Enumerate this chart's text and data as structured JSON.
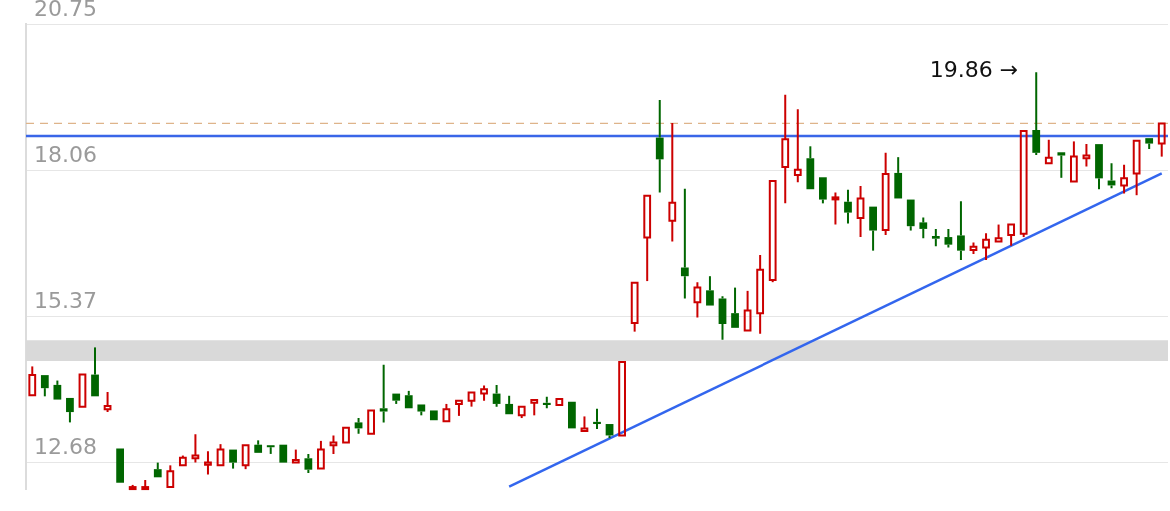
{
  "chart_data": {
    "type": "candlestick",
    "categories": [
      null,
      null,
      null,
      null,
      null,
      null,
      null,
      null,
      null,
      null,
      null,
      null,
      null,
      null,
      null,
      null,
      null,
      null,
      null,
      null,
      null,
      null,
      null,
      null,
      null,
      null,
      null,
      null,
      null,
      null,
      null,
      null,
      null,
      null,
      null,
      null,
      null,
      null,
      null,
      null,
      null,
      null,
      null,
      null,
      null,
      null,
      null,
      null,
      null,
      null,
      null,
      null,
      null,
      null,
      null,
      null,
      null,
      null,
      null,
      null,
      null,
      null,
      null,
      null,
      null,
      null,
      null,
      null,
      null,
      null,
      null,
      null,
      null,
      null,
      null,
      null,
      null,
      null,
      null,
      null,
      null,
      null,
      null,
      null,
      null,
      null,
      null,
      null,
      null,
      null,
      null
    ],
    "ohlc": [
      [
        13.92,
        14.45,
        13.92,
        14.29
      ],
      [
        14.29,
        14.29,
        13.9,
        14.05
      ],
      [
        14.11,
        14.19,
        13.84,
        13.84
      ],
      [
        13.87,
        13.87,
        13.42,
        13.61
      ],
      [
        13.71,
        14.32,
        13.69,
        14.3
      ],
      [
        14.3,
        14.8,
        13.9,
        13.9
      ],
      [
        13.66,
        13.98,
        13.61,
        13.72
      ],
      [
        12.94,
        12.94,
        12.31,
        12.31
      ],
      [
        12.2,
        12.27,
        12.2,
        12.23
      ],
      [
        12.2,
        12.36,
        12.2,
        12.23
      ],
      [
        12.56,
        12.68,
        12.39,
        12.41
      ],
      [
        12.23,
        12.63,
        12.2,
        12.52
      ],
      [
        12.63,
        12.81,
        12.63,
        12.77
      ],
      [
        12.76,
        13.2,
        12.68,
        12.81
      ],
      [
        12.64,
        12.89,
        12.46,
        12.68
      ],
      [
        12.63,
        13.02,
        12.63,
        12.92
      ],
      [
        12.92,
        12.94,
        12.57,
        12.68
      ],
      [
        12.63,
        13.01,
        12.56,
        13.0
      ],
      [
        13.01,
        13.09,
        12.86,
        12.86
      ],
      [
        13.0,
        13.02,
        12.84,
        12.97
      ],
      [
        13.01,
        13.01,
        12.68,
        12.68
      ],
      [
        12.68,
        12.92,
        12.65,
        12.73
      ],
      [
        12.76,
        12.84,
        12.49,
        12.55
      ],
      [
        12.57,
        13.08,
        12.57,
        12.92
      ],
      [
        13.0,
        13.18,
        12.84,
        13.05
      ],
      [
        13.05,
        13.34,
        13.04,
        13.32
      ],
      [
        13.42,
        13.5,
        13.21,
        13.31
      ],
      [
        13.21,
        13.64,
        13.21,
        13.64
      ],
      [
        13.68,
        14.48,
        13.42,
        13.62
      ],
      [
        13.95,
        13.98,
        13.76,
        13.82
      ],
      [
        13.92,
        14.0,
        13.66,
        13.68
      ],
      [
        13.75,
        13.75,
        13.55,
        13.62
      ],
      [
        13.64,
        13.66,
        13.45,
        13.46
      ],
      [
        13.44,
        13.76,
        13.44,
        13.66
      ],
      [
        13.76,
        13.82,
        13.54,
        13.82
      ],
      [
        13.82,
        13.98,
        13.71,
        13.97
      ],
      [
        13.95,
        14.1,
        13.82,
        14.03
      ],
      [
        13.95,
        14.11,
        13.71,
        13.76
      ],
      [
        13.76,
        13.91,
        13.55,
        13.57
      ],
      [
        13.55,
        13.71,
        13.5,
        13.71
      ],
      [
        13.78,
        13.85,
        13.55,
        13.83
      ],
      [
        13.78,
        13.89,
        13.68,
        13.74
      ],
      [
        13.74,
        13.85,
        13.71,
        13.85
      ],
      [
        13.8,
        13.8,
        13.3,
        13.31
      ],
      [
        13.26,
        13.53,
        13.23,
        13.31
      ],
      [
        13.43,
        13.67,
        13.3,
        13.39
      ],
      [
        13.39,
        13.41,
        13.13,
        13.18
      ],
      [
        13.18,
        14.53,
        13.17,
        14.53
      ],
      [
        15.25,
        15.99,
        15.09,
        15.99
      ],
      [
        16.82,
        17.6,
        16.02,
        17.59
      ],
      [
        18.66,
        19.35,
        17.65,
        18.26
      ],
      [
        17.13,
        18.93,
        16.75,
        17.46
      ],
      [
        16.27,
        17.72,
        15.7,
        16.11
      ],
      [
        15.63,
        16.0,
        15.35,
        15.9
      ],
      [
        15.85,
        16.11,
        15.54,
        15.57
      ],
      [
        15.7,
        15.74,
        14.94,
        15.23
      ],
      [
        15.43,
        15.9,
        15.16,
        15.16
      ],
      [
        15.11,
        15.84,
        15.11,
        15.48
      ],
      [
        15.43,
        16.5,
        15.05,
        16.23
      ],
      [
        16.04,
        17.87,
        16.0,
        17.86
      ],
      [
        18.12,
        19.45,
        17.45,
        18.63
      ],
      [
        17.97,
        19.18,
        17.84,
        18.07
      ],
      [
        18.28,
        18.5,
        17.71,
        17.71
      ],
      [
        17.93,
        17.94,
        17.45,
        17.52
      ],
      [
        17.54,
        17.65,
        17.06,
        17.56
      ],
      [
        17.48,
        17.7,
        17.08,
        17.28
      ],
      [
        17.18,
        17.77,
        16.83,
        17.54
      ],
      [
        17.39,
        17.39,
        16.58,
        16.95
      ],
      [
        16.96,
        18.38,
        16.87,
        17.99
      ],
      [
        18.01,
        18.3,
        17.54,
        17.54
      ],
      [
        17.52,
        17.52,
        16.95,
        17.03
      ],
      [
        17.1,
        17.19,
        16.81,
        16.98
      ],
      [
        16.85,
        16.98,
        16.66,
        16.8
      ],
      [
        16.83,
        16.98,
        16.64,
        16.69
      ],
      [
        16.86,
        17.49,
        16.41,
        16.58
      ],
      [
        16.59,
        16.73,
        16.52,
        16.65
      ],
      [
        16.64,
        16.9,
        16.41,
        16.78
      ],
      [
        16.75,
        17.06,
        16.75,
        16.81
      ],
      [
        16.87,
        17.08,
        16.67,
        17.06
      ],
      [
        16.89,
        18.79,
        16.83,
        18.78
      ],
      [
        18.8,
        19.86,
        18.34,
        18.38
      ],
      [
        18.19,
        18.62,
        18.19,
        18.29
      ],
      [
        18.39,
        18.42,
        17.92,
        18.33
      ],
      [
        17.85,
        18.59,
        17.85,
        18.31
      ],
      [
        18.28,
        18.54,
        18.13,
        18.33
      ],
      [
        18.54,
        18.54,
        17.71,
        17.91
      ],
      [
        17.87,
        18.19,
        17.73,
        17.78
      ],
      [
        17.78,
        18.16,
        17.63,
        17.91
      ],
      [
        18.0,
        18.62,
        17.6,
        18.6
      ],
      [
        18.65,
        18.66,
        18.45,
        18.55
      ],
      [
        18.55,
        18.93,
        18.31,
        18.92
      ]
    ],
    "colors": [
      "#cc0000",
      "#006600",
      "#006600",
      "#006600",
      "#cc0000",
      "#006600",
      "#cc0000",
      "#006600",
      "#cc0000",
      "#cc0000",
      "#006600",
      "#cc0000",
      "#cc0000",
      "#cc0000",
      "#cc0000",
      "#cc0000",
      "#006600",
      "#cc0000",
      "#006600",
      "#006600",
      "#006600",
      "#cc0000",
      "#006600",
      "#cc0000",
      "#cc0000",
      "#cc0000",
      "#006600",
      "#cc0000",
      "#006600",
      "#006600",
      "#006600",
      "#006600",
      "#006600",
      "#cc0000",
      "#cc0000",
      "#cc0000",
      "#cc0000",
      "#006600",
      "#006600",
      "#cc0000",
      "#cc0000",
      "#006600",
      "#cc0000",
      "#006600",
      "#cc0000",
      "#006600",
      "#006600",
      "#cc0000",
      "#cc0000",
      "#cc0000",
      "#006600",
      "#cc0000",
      "#006600",
      "#cc0000",
      "#006600",
      "#006600",
      "#006600",
      "#cc0000",
      "#cc0000",
      "#cc0000",
      "#cc0000",
      "#cc0000",
      "#006600",
      "#006600",
      "#cc0000",
      "#006600",
      "#cc0000",
      "#006600",
      "#cc0000",
      "#006600",
      "#006600",
      "#006600",
      "#006600",
      "#006600",
      "#006600",
      "#cc0000",
      "#cc0000",
      "#cc0000",
      "#cc0000",
      "#cc0000",
      "#006600",
      "#cc0000",
      "#006600",
      "#cc0000",
      "#cc0000",
      "#006600",
      "#006600",
      "#cc0000",
      "#cc0000",
      "#006600",
      "#cc0000"
    ],
    "series": [
      {
        "type": "line",
        "color": "#3366ee",
        "values": [
          null,
          null,
          null,
          null,
          null,
          null,
          null,
          null,
          null,
          null,
          null,
          null,
          null,
          null,
          null,
          null,
          null,
          null,
          null,
          null,
          null,
          null,
          null,
          null,
          null,
          null,
          null,
          null,
          null,
          null,
          null,
          null,
          null,
          null,
          null,
          null,
          null,
          null,
          12.24,
          null,
          null,
          null,
          null,
          null,
          null,
          null,
          null,
          null,
          null,
          null,
          null,
          null,
          null,
          null,
          null,
          null,
          null,
          null,
          null,
          null,
          null,
          null,
          null,
          null,
          null,
          null,
          null,
          null,
          null,
          null,
          null,
          null,
          null,
          null,
          null,
          null,
          null,
          null,
          null,
          null,
          null,
          null,
          null,
          null,
          null,
          null,
          null,
          null,
          null,
          null,
          18.0
        ]
      }
    ],
    "ylim": [
      12.18,
      20.75
    ],
    "yticks": [
      12.68,
      15.37,
      18.06,
      20.75
    ],
    "grid": "y",
    "tick_labels": "y",
    "ref_lines": [
      {
        "axis": "y",
        "value": 18.69,
        "color": "#3a66e8"
      },
      {
        "axis": "y",
        "value": 18.92,
        "color": "#deb48a",
        "line_style": "dashed"
      }
    ],
    "bands": [
      {
        "axis": "y",
        "from": 14.55,
        "to": 14.93,
        "color": "#d9d9d9"
      }
    ],
    "annotations": [
      "19.86 →"
    ]
  }
}
